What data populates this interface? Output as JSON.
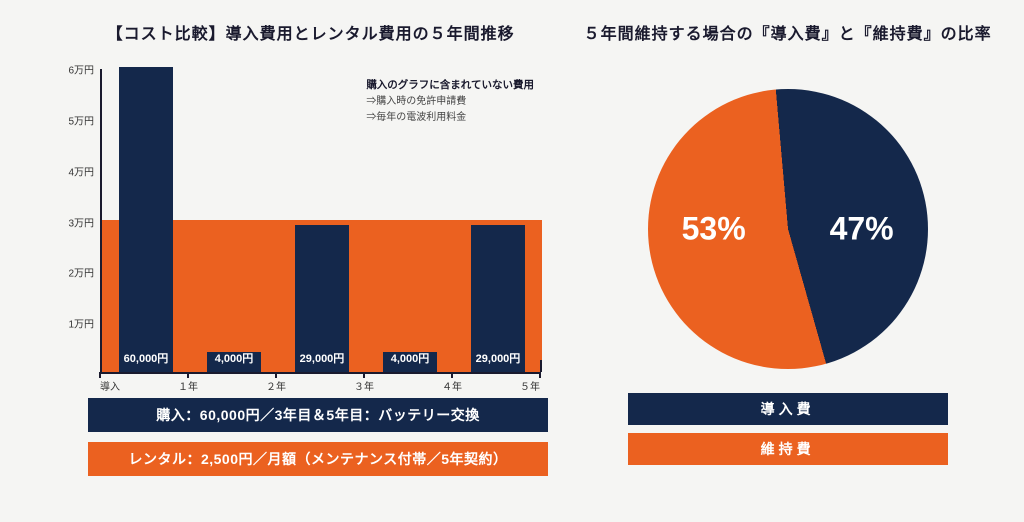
{
  "colors": {
    "navy": "#14284b",
    "orange": "#eb6120",
    "background": "#f5f5f3",
    "text": "#1a1a2e"
  },
  "left": {
    "title": "【コスト比較】導入費用とレンタル費用の５年間推移",
    "chart": {
      "type": "bar+area",
      "y_max": 60000,
      "y_ticks": [
        {
          "v": 10000,
          "label": "1万円"
        },
        {
          "v": 20000,
          "label": "2万円"
        },
        {
          "v": 30000,
          "label": "3万円"
        },
        {
          "v": 40000,
          "label": "4万円"
        },
        {
          "v": 50000,
          "label": "5万円"
        },
        {
          "v": 60000,
          "label": "6万円"
        }
      ],
      "x_labels": [
        "導入",
        "１年",
        "２年",
        "３年",
        "４年",
        "５年"
      ],
      "rental_level": 30000,
      "bars": [
        {
          "value": 60000,
          "label": "60,000円"
        },
        {
          "value": 4000,
          "label": "4,000円"
        },
        {
          "value": 29000,
          "label": "29,000円"
        },
        {
          "value": 4000,
          "label": "4,000円"
        },
        {
          "value": 29000,
          "label": "29,000円"
        }
      ],
      "note_title": "購入のグラフに含まれていない費用",
      "note_lines": [
        "⇒購入時の免許申請費",
        "⇒毎年の電波利用料金"
      ]
    },
    "legend_navy": "購入：60,000円／3年目＆5年目：バッテリー交換",
    "legend_orange": "レンタル：2,500円／月額（メンテナンス付帯／5年契約）"
  },
  "right": {
    "title": "５年間維持する場合の『導入費』と『維持費』の比率",
    "pie": {
      "type": "pie",
      "slices": [
        {
          "label": "維持費",
          "pct": 53,
          "color": "#eb6120",
          "display": "53%"
        },
        {
          "label": "導入費",
          "pct": 47,
          "color": "#14284b",
          "display": "47%"
        }
      ],
      "start_angle_deg": -5
    },
    "legend_navy": "導入費",
    "legend_orange": "維持費"
  }
}
